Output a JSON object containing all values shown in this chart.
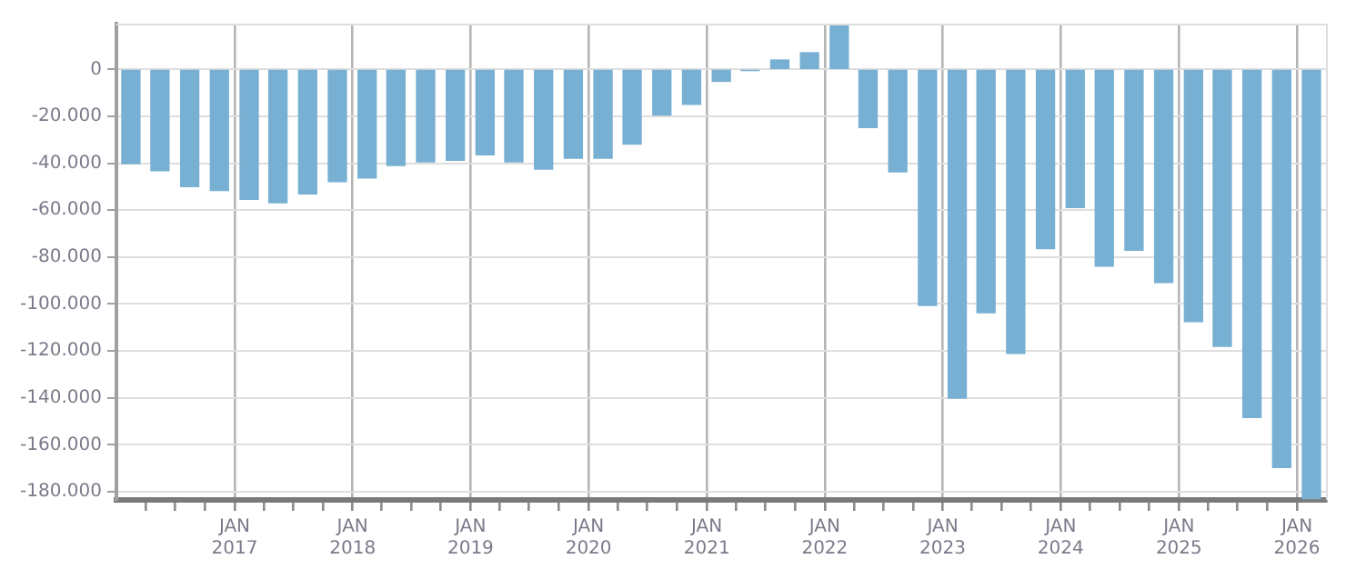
{
  "chart_data": {
    "type": "bar",
    "color": "#78b0d3",
    "x": [
      "2016-02-15",
      "2016-05-15",
      "2016-08-15",
      "2016-11-15",
      "2017-02-15",
      "2017-05-15",
      "2017-08-15",
      "2017-11-15",
      "2018-02-15",
      "2018-05-15",
      "2018-08-15",
      "2018-11-15",
      "2019-02-15",
      "2019-05-15",
      "2019-08-15",
      "2019-11-15",
      "2020-02-15",
      "2020-05-15",
      "2020-08-15",
      "2020-11-15",
      "2021-02-15",
      "2021-05-15",
      "2021-08-15",
      "2021-11-15",
      "2022-02-15",
      "2022-05-15",
      "2022-08-15",
      "2022-11-15",
      "2023-02-15",
      "2023-05-15",
      "2023-08-15",
      "2023-11-15",
      "2024-02-15",
      "2024-05-15",
      "2024-08-15",
      "2024-11-15",
      "2025-02-15",
      "2025-05-15",
      "2025-08-15",
      "2025-11-15",
      "2026-02-15"
    ],
    "values": [
      -40200,
      -43200,
      -50000,
      -51600,
      -55400,
      -56900,
      -53100,
      -47800,
      -46300,
      -41000,
      -39400,
      -38700,
      -36400,
      -39400,
      -42500,
      -37900,
      -37900,
      -31900,
      -19500,
      -14900,
      -5100,
      -500,
      4000,
      7100,
      19000,
      -24800,
      -43700,
      -100600,
      -140100,
      -103700,
      -121100,
      -76400,
      -58900,
      -83900,
      -77100,
      -90800,
      -107500,
      -118100,
      -148400,
      -169700,
      -183000
    ],
    "xlim": [
      "2016-01-01",
      "2026-04-01"
    ],
    "xticks": [
      {
        "value": "2016-04-01",
        "label": null
      },
      {
        "value": "2016-07-01",
        "label": null
      },
      {
        "value": "2016-10-01",
        "label": null
      },
      {
        "value": "2017-01-01",
        "label": "JAN 2017"
      },
      {
        "value": "2017-04-01",
        "label": null
      },
      {
        "value": "2017-07-01",
        "label": null
      },
      {
        "value": "2017-10-01",
        "label": null
      },
      {
        "value": "2018-01-01",
        "label": "JAN 2018"
      },
      {
        "value": "2018-04-01",
        "label": null
      },
      {
        "value": "2018-07-01",
        "label": null
      },
      {
        "value": "2018-10-01",
        "label": null
      },
      {
        "value": "2019-01-01",
        "label": "JAN 2019"
      },
      {
        "value": "2019-04-01",
        "label": null
      },
      {
        "value": "2019-07-01",
        "label": null
      },
      {
        "value": "2019-10-01",
        "label": null
      },
      {
        "value": "2020-01-01",
        "label": "JAN 2020"
      },
      {
        "value": "2020-04-01",
        "label": null
      },
      {
        "value": "2020-07-01",
        "label": null
      },
      {
        "value": "2020-10-01",
        "label": null
      },
      {
        "value": "2021-01-01",
        "label": "JAN 2021"
      },
      {
        "value": "2021-04-01",
        "label": null
      },
      {
        "value": "2021-07-01",
        "label": null
      },
      {
        "value": "2021-10-01",
        "label": null
      },
      {
        "value": "2022-01-01",
        "label": "JAN 2022"
      },
      {
        "value": "2022-04-01",
        "label": null
      },
      {
        "value": "2022-07-01",
        "label": null
      },
      {
        "value": "2022-10-01",
        "label": null
      },
      {
        "value": "2023-01-01",
        "label": "JAN 2023"
      },
      {
        "value": "2023-04-01",
        "label": null
      },
      {
        "value": "2023-07-01",
        "label": null
      },
      {
        "value": "2023-10-01",
        "label": null
      },
      {
        "value": "2024-01-01",
        "label": "JAN 2024"
      },
      {
        "value": "2024-04-01",
        "label": null
      },
      {
        "value": "2024-07-01",
        "label": null
      },
      {
        "value": "2024-10-01",
        "label": null
      },
      {
        "value": "2025-01-01",
        "label": "JAN 2025"
      },
      {
        "value": "2025-04-01",
        "label": null
      },
      {
        "value": "2025-07-01",
        "label": null
      },
      {
        "value": "2025-10-01",
        "label": null
      },
      {
        "value": "2026-01-01",
        "label": "JAN 2026"
      }
    ],
    "ylim": [
      -183500,
      19500
    ],
    "yticks": [
      {
        "value": -180000,
        "label": "-180.000"
      },
      {
        "value": -160000,
        "label": "-160.000"
      },
      {
        "value": -140000,
        "label": "-140.000"
      },
      {
        "value": -120000,
        "label": "-120.000"
      },
      {
        "value": -100000,
        "label": "-100.000"
      },
      {
        "value": -80000,
        "label": "-80.000"
      },
      {
        "value": -60000,
        "label": "-60.000"
      },
      {
        "value": -40000,
        "label": "-40.000"
      },
      {
        "value": -20000,
        "label": "-20.000"
      },
      0
    ],
    "grid": true,
    "legend": false
  }
}
